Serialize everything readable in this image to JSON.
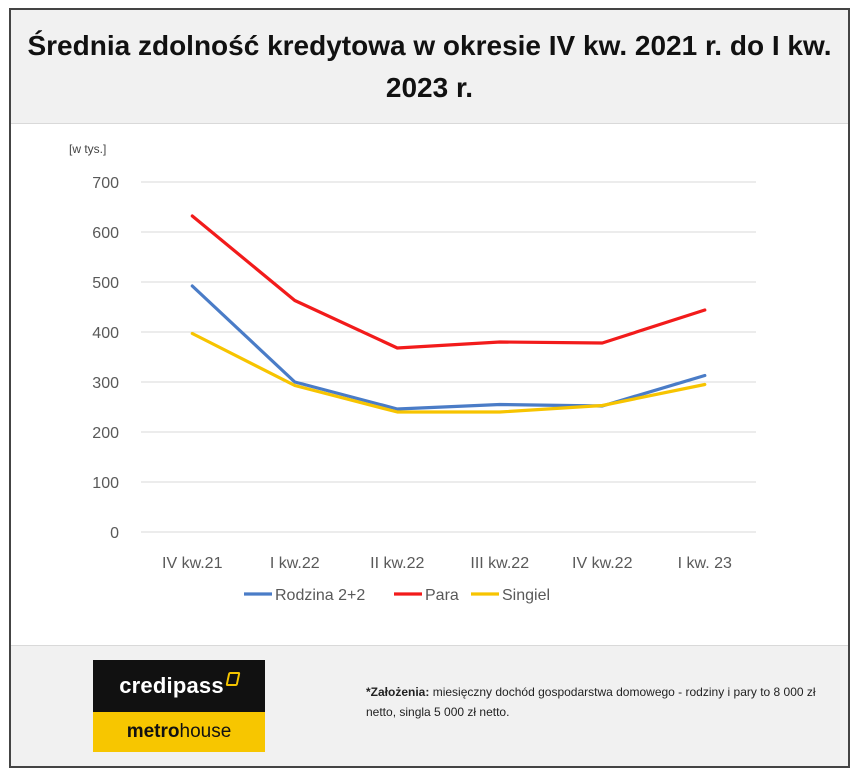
{
  "header": {
    "title": "Średnia zdolność kredytowa w okresie IV kw. 2021 r. do I kw. 2023 r."
  },
  "chart_data": {
    "type": "line",
    "title": "Średnia zdolność kredytowa w okresie IV kw. 2021 r. do I kw. 2023 r.",
    "unit_label": "[w tys.]",
    "xlabel": "",
    "ylabel": "",
    "categories": [
      "IV kw.21",
      "I kw.22",
      "II kw.22",
      "III kw.22",
      "IV kw.22",
      "I kw. 23"
    ],
    "ylim": [
      0,
      700
    ],
    "yticks": [
      "700",
      "600",
      "500",
      "400",
      "300",
      "200",
      "100",
      "0"
    ],
    "grid": true,
    "legend_position": "bottom",
    "series": [
      {
        "name": "Rodzina 2+2",
        "color": "#4a7cc7",
        "values": [
          492,
          300,
          246,
          255,
          252,
          313
        ]
      },
      {
        "name": "Para",
        "color": "#f21b1b",
        "values": [
          632,
          463,
          368,
          380,
          378,
          444
        ]
      },
      {
        "name": "Singiel",
        "color": "#f7c400",
        "values": [
          397,
          293,
          240,
          240,
          253,
          295
        ]
      }
    ]
  },
  "footer": {
    "logo_top": "credipass",
    "logo_bottom_bold": "metro",
    "logo_bottom_regular": "house",
    "note_label": "*Założenia:",
    "note_text": "miesięczny dochód gospodarstwa domowego - rodziny i pary to 8 000 zł netto, singla 5 000 zł netto."
  }
}
